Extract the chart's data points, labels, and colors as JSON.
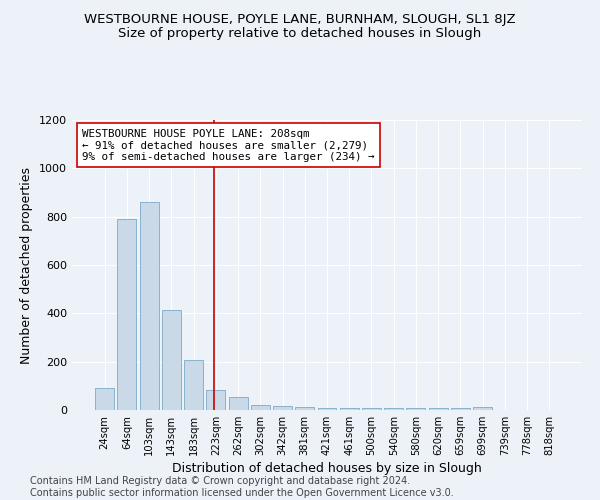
{
  "title": "WESTBOURNE HOUSE, POYLE LANE, BURNHAM, SLOUGH, SL1 8JZ",
  "subtitle": "Size of property relative to detached houses in Slough",
  "xlabel": "Distribution of detached houses by size in Slough",
  "ylabel": "Number of detached properties",
  "categories": [
    "24sqm",
    "64sqm",
    "103sqm",
    "143sqm",
    "183sqm",
    "223sqm",
    "262sqm",
    "302sqm",
    "342sqm",
    "381sqm",
    "421sqm",
    "461sqm",
    "500sqm",
    "540sqm",
    "580sqm",
    "620sqm",
    "659sqm",
    "699sqm",
    "739sqm",
    "778sqm",
    "818sqm"
  ],
  "values": [
    90,
    790,
    860,
    415,
    205,
    83,
    53,
    20,
    18,
    13,
    10,
    10,
    10,
    10,
    10,
    10,
    10,
    13,
    0,
    0,
    0
  ],
  "bar_color": "#c9d9e8",
  "bar_edge_color": "#7aaac8",
  "vline_color": "#cc0000",
  "ylim": [
    0,
    1200
  ],
  "yticks": [
    0,
    200,
    400,
    600,
    800,
    1000,
    1200
  ],
  "annotation_text": "WESTBOURNE HOUSE POYLE LANE: 208sqm\n← 91% of detached houses are smaller (2,279)\n9% of semi-detached houses are larger (234) →",
  "annotation_box_color": "#ffffff",
  "annotation_box_edge": "#cc0000",
  "footer_text": "Contains HM Land Registry data © Crown copyright and database right 2024.\nContains public sector information licensed under the Open Government Licence v3.0.",
  "background_color": "#edf2f8",
  "plot_bg_color": "#edf2f8",
  "title_fontsize": 9.5,
  "subtitle_fontsize": 9.5,
  "xlabel_fontsize": 9,
  "ylabel_fontsize": 9,
  "footer_fontsize": 7,
  "vline_pos": 4.93
}
